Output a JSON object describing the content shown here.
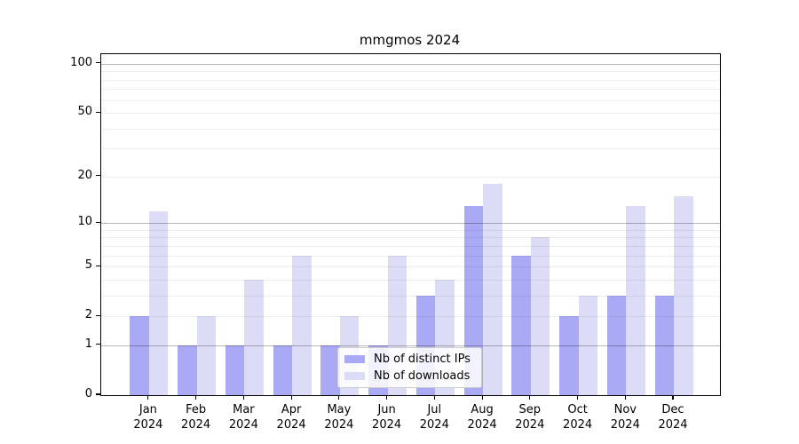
{
  "title": "mmgmos 2024",
  "chart_data": {
    "type": "bar",
    "title": "mmgmos 2024",
    "categories": [
      "Jan 2024",
      "Feb 2024",
      "Mar 2024",
      "Apr 2024",
      "May 2024",
      "Jun 2024",
      "Jul 2024",
      "Aug 2024",
      "Sep 2024",
      "Oct 2024",
      "Nov 2024",
      "Dec 2024"
    ],
    "x_tick_months": [
      "Jan",
      "Feb",
      "Mar",
      "Apr",
      "May",
      "Jun",
      "Jul",
      "Aug",
      "Sep",
      "Oct",
      "Nov",
      "Dec"
    ],
    "x_tick_year": "2024",
    "series": [
      {
        "name": "Nb of distinct IPs",
        "color": "#a9a9f4",
        "values": [
          2,
          1,
          1,
          1,
          1,
          1,
          3,
          13,
          6,
          2,
          3,
          3
        ]
      },
      {
        "name": "Nb of downloads",
        "color": "#dcdcf7",
        "values": [
          12,
          2,
          4,
          6,
          2,
          6,
          4,
          18,
          8,
          3,
          13,
          15
        ]
      }
    ],
    "xlabel": "",
    "ylabel": "",
    "yscale": "log10(1+x)",
    "ylim": [
      0,
      115
    ],
    "y_ticks": [
      0,
      1,
      2,
      5,
      10,
      20,
      50,
      100
    ],
    "y_gridlines_major": [
      1,
      10,
      100
    ],
    "y_gridlines_minor": [
      2,
      3,
      4,
      5,
      6,
      7,
      8,
      9,
      20,
      30,
      40,
      50,
      60,
      70,
      80,
      90
    ],
    "grid": "horizontal",
    "legend_position": "inside-bottom-center",
    "legend": {
      "items": [
        {
          "label": "Nb of distinct IPs",
          "series": 0
        },
        {
          "label": "Nb of downloads",
          "series": 1
        }
      ]
    },
    "background_color": "#ffffff",
    "spine_color": "#000000"
  }
}
